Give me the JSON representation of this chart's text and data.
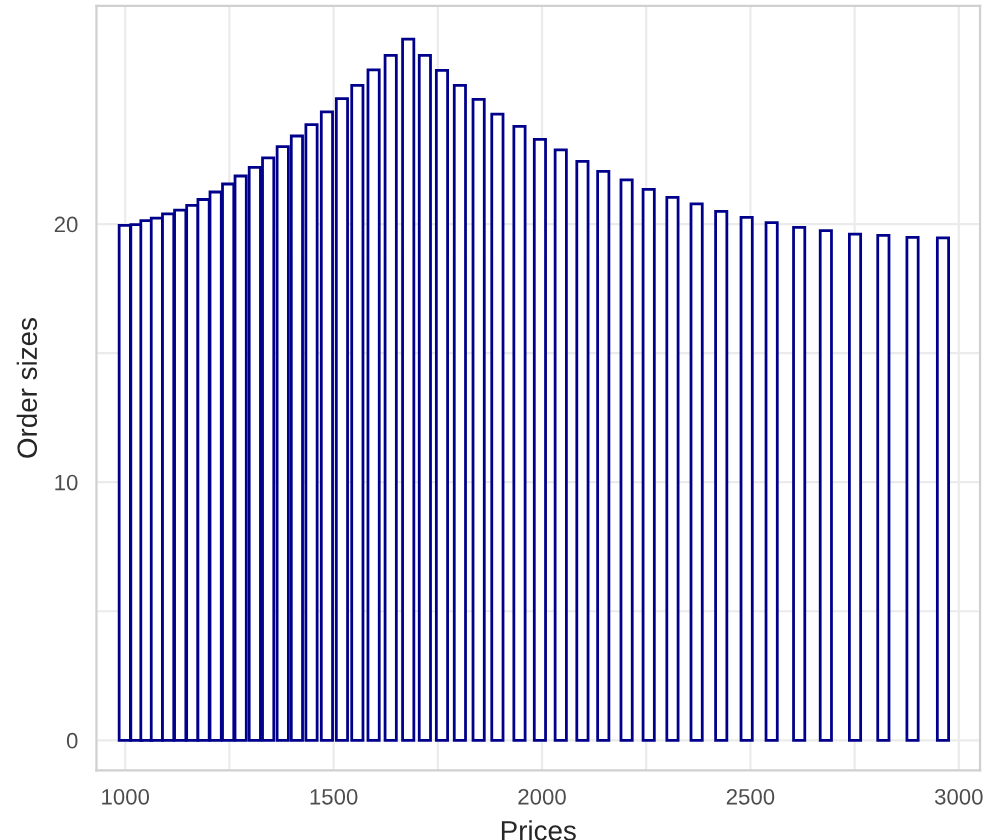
{
  "chart_data": {
    "type": "bar",
    "xlabel": "Prices",
    "ylabel": "Order sizes",
    "color": "#00008b",
    "x": [
      999,
      1027,
      1051,
      1076,
      1103,
      1132,
      1161,
      1188,
      1217,
      1247,
      1277,
      1311,
      1343,
      1378,
      1412,
      1447,
      1484,
      1520,
      1557,
      1596,
      1637,
      1679,
      1719,
      1760,
      1803,
      1848,
      1893,
      1946,
      1995,
      2045,
      2097,
      2147,
      2203,
      2256,
      2313,
      2371,
      2430,
      2491,
      2551,
      2617,
      2681,
      2751,
      2819,
      2889,
      2962
    ],
    "values": [
      19.95,
      19.98,
      20.13,
      20.23,
      20.39,
      20.54,
      20.72,
      20.95,
      21.24,
      21.55,
      21.86,
      22.19,
      22.56,
      23.0,
      23.41,
      23.85,
      24.34,
      24.86,
      25.37,
      25.97,
      26.53,
      27.16,
      26.53,
      25.95,
      25.37,
      24.83,
      24.26,
      23.78,
      23.28,
      22.87,
      22.43,
      22.04,
      21.71,
      21.34,
      21.03,
      20.78,
      20.49,
      20.26,
      20.05,
      19.87,
      19.74,
      19.61,
      19.56,
      19.48,
      19.46
    ],
    "xlim": [
      931,
      3051
    ],
    "ylim": [
      -1.16,
      28.45
    ],
    "xticks": [
      1000,
      1500,
      2000,
      2500,
      3000
    ],
    "yticks": [
      0,
      10,
      20
    ],
    "grid": true
  }
}
